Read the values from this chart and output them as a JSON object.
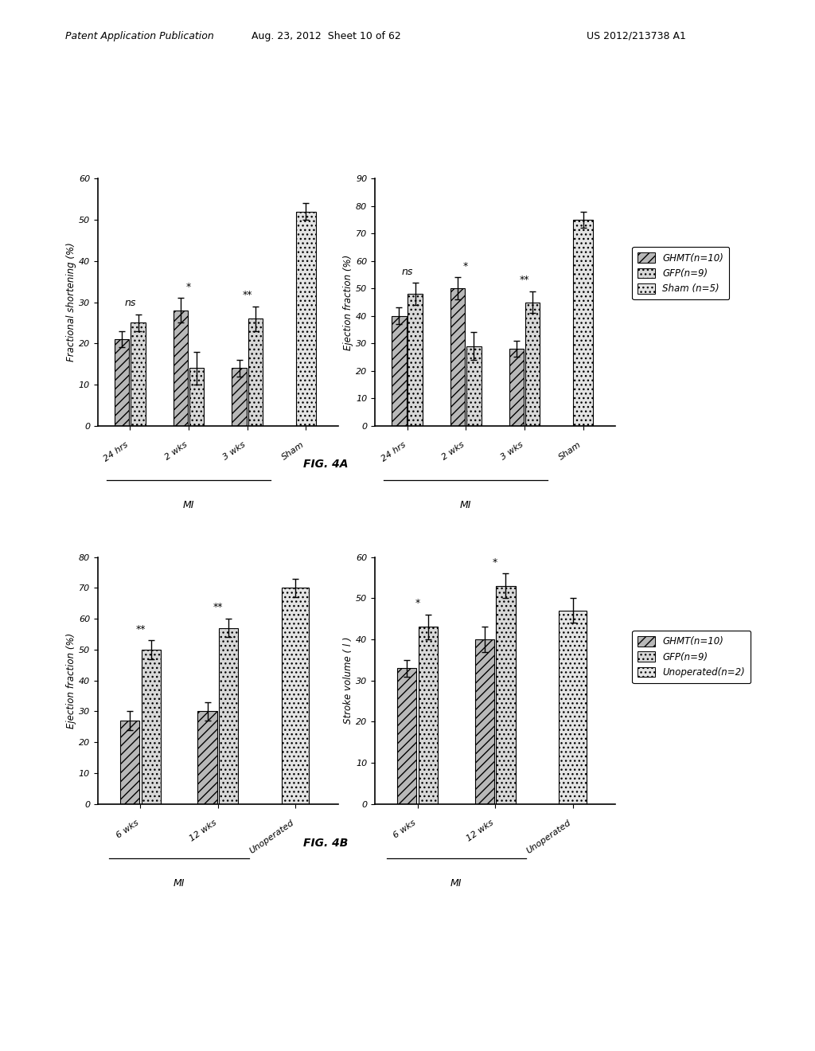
{
  "fig4a_left": {
    "ylabel": "Fractional shortening (%)",
    "ylim": [
      0,
      60
    ],
    "yticks": [
      0,
      10,
      20,
      30,
      40,
      50,
      60
    ],
    "groups": [
      "24 hrs",
      "2 wks",
      "3 wks",
      "Sham"
    ],
    "GHMT": [
      21,
      28,
      14,
      0
    ],
    "GFP": [
      25,
      14,
      26,
      0
    ],
    "third": [
      0,
      0,
      0,
      52
    ],
    "GHMT_err": [
      2,
      3,
      2,
      0
    ],
    "GFP_err": [
      2,
      4,
      3,
      0
    ],
    "third_err": [
      0,
      0,
      0,
      2
    ],
    "sig": [
      "ns",
      "*",
      "**",
      ""
    ],
    "n_mi": 3,
    "mi_label": "MI"
  },
  "fig4a_right": {
    "ylabel": "Ejection fraction (%)",
    "ylim": [
      0,
      90
    ],
    "yticks": [
      0,
      10,
      20,
      30,
      40,
      50,
      60,
      70,
      80,
      90
    ],
    "groups": [
      "24 hrs",
      "2 wks",
      "3 wks",
      "Sham"
    ],
    "GHMT": [
      40,
      50,
      28,
      0
    ],
    "GFP": [
      48,
      29,
      45,
      0
    ],
    "third": [
      0,
      0,
      0,
      75
    ],
    "GHMT_err": [
      3,
      4,
      3,
      0
    ],
    "GFP_err": [
      4,
      5,
      4,
      0
    ],
    "third_err": [
      0,
      0,
      0,
      3
    ],
    "sig": [
      "ns",
      "*",
      "**",
      ""
    ],
    "n_mi": 3,
    "mi_label": "MI"
  },
  "fig4b_left": {
    "ylabel": "Ejection fraction (%)",
    "ylim": [
      0,
      80
    ],
    "yticks": [
      0,
      10,
      20,
      30,
      40,
      50,
      60,
      70,
      80
    ],
    "groups": [
      "6 wks",
      "12 wks",
      "Unoperated"
    ],
    "GHMT": [
      27,
      30,
      0
    ],
    "GFP": [
      50,
      57,
      0
    ],
    "third": [
      0,
      0,
      70
    ],
    "GHMT_err": [
      3,
      3,
      0
    ],
    "GFP_err": [
      3,
      3,
      0
    ],
    "third_err": [
      0,
      0,
      3
    ],
    "sig": [
      "**",
      "**",
      ""
    ],
    "n_mi": 2,
    "mi_label": "MI"
  },
  "fig4b_right": {
    "ylabel": "Stroke volume ( l )",
    "ylim": [
      0,
      60
    ],
    "yticks": [
      0,
      10,
      20,
      30,
      40,
      50,
      60
    ],
    "groups": [
      "6 wks",
      "12 wks",
      "Unoperated"
    ],
    "GHMT": [
      33,
      40,
      0
    ],
    "GFP": [
      43,
      53,
      0
    ],
    "third": [
      0,
      0,
      47
    ],
    "GHMT_err": [
      2,
      3,
      0
    ],
    "GFP_err": [
      3,
      3,
      0
    ],
    "third_err": [
      0,
      0,
      3
    ],
    "sig": [
      "*",
      "*",
      ""
    ],
    "n_mi": 2,
    "mi_label": "MI"
  },
  "legend_4a": [
    "GHMT(n=10)",
    "GFP(n=9)",
    "Sham (n=5)"
  ],
  "legend_4b": [
    "GHMT(n=10)",
    "GFP(n=9)",
    "Unoperated(n=2)"
  ],
  "fig4a_caption": "FIG. 4A",
  "fig4b_caption": "FIG. 4B",
  "header_left": "Patent Application Publication",
  "header_mid": "Aug. 23, 2012  Sheet 10 of 62",
  "header_right": "US 2012/213738 A1",
  "bg_color": "#ffffff",
  "color_ghmt": "#b8b8b8",
  "color_gfp": "#d8d8d8",
  "color_third": "#e4e4e4",
  "hatch_ghmt": "///",
  "hatch_gfp": "...",
  "hatch_third": "..."
}
